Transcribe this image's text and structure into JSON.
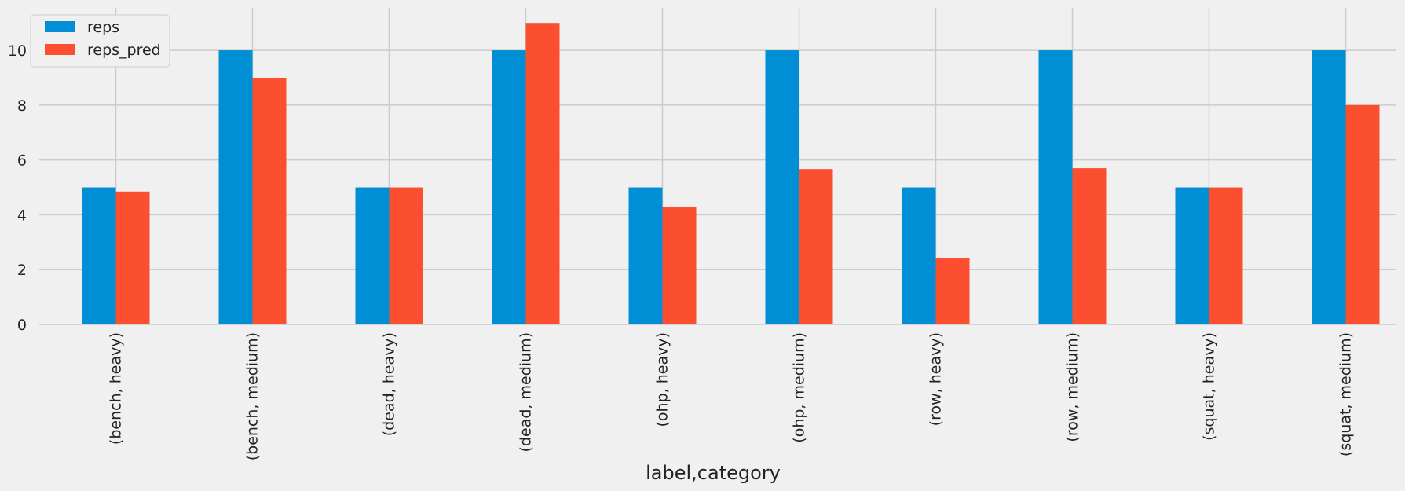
{
  "chart_data": {
    "type": "bar",
    "title": "",
    "xlabel": "label,category",
    "ylabel": "",
    "categories": [
      "(bench, heavy)",
      "(bench, medium)",
      "(dead, heavy)",
      "(dead, medium)",
      "(ohp, heavy)",
      "(ohp, medium)",
      "(row, heavy)",
      "(row, medium)",
      "(squat, heavy)",
      "(squat, medium)"
    ],
    "series": [
      {
        "name": "reps",
        "color": "#008fd5",
        "values": [
          5,
          10,
          5,
          10,
          5,
          10,
          5,
          10,
          5,
          10
        ]
      },
      {
        "name": "reps_pred",
        "color": "#fc4f30",
        "values": [
          4.85,
          9.0,
          5.0,
          11.0,
          4.3,
          5.67,
          2.42,
          5.7,
          5.0,
          8.0
        ]
      }
    ],
    "ylim": [
      0,
      11.55
    ],
    "yticks": [
      0,
      2,
      4,
      6,
      8,
      10
    ],
    "grid": true,
    "legend_position": "top-left",
    "style": {
      "background": "#f0f0f0",
      "grid_color": "#cbcbcb"
    }
  }
}
